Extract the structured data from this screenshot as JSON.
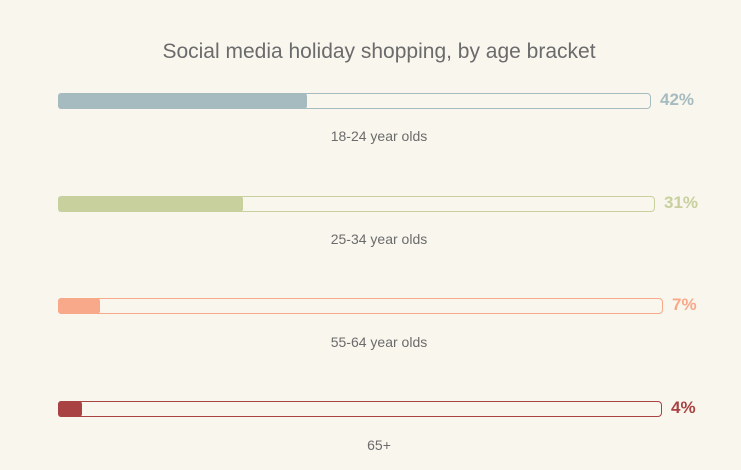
{
  "chart_data": {
    "type": "bar",
    "orientation": "horizontal",
    "title": "Social media holiday shopping, by age bracket",
    "categories": [
      "18-24 year olds",
      "25-34 year olds",
      "55-64 year olds",
      "65+"
    ],
    "values": [
      42,
      31,
      7,
      4
    ],
    "value_labels": [
      "42%",
      "31%",
      "7%",
      "4%"
    ],
    "xlim": [
      0,
      100
    ],
    "colors": [
      "#a6bbc0",
      "#c8d09e",
      "#f7a98a",
      "#a94343"
    ],
    "grid": false,
    "legend": "none"
  }
}
